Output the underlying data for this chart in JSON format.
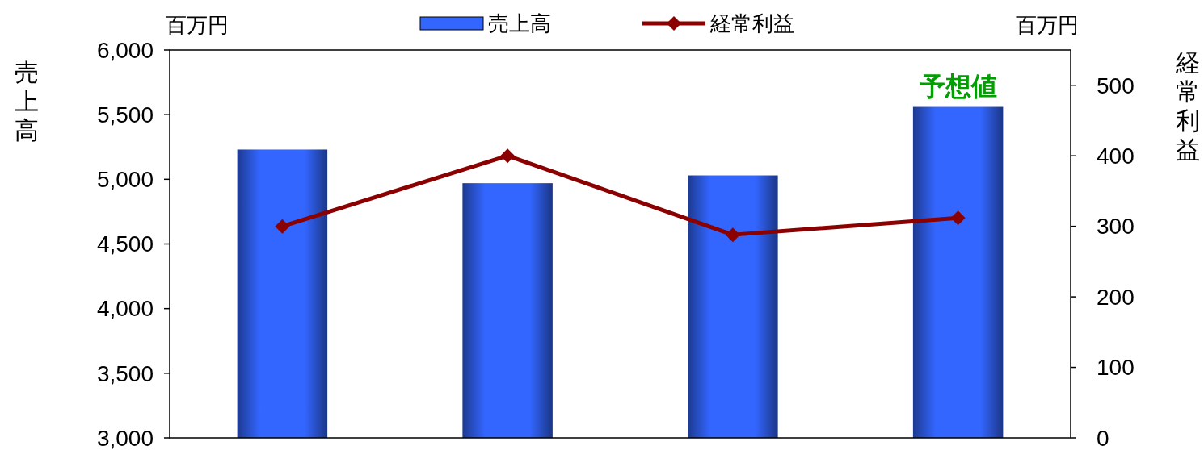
{
  "chart_data": {
    "type": "bar",
    "ylabel": "売上高",
    "y2label": "経常利益",
    "annotations": [
      "百万円",
      "百万円",
      "予想値"
    ],
    "categories": [
      null,
      null,
      null,
      null
    ],
    "series": [
      {
        "name": "売上高",
        "color": "#3366ff",
        "values": [
          5230,
          4970,
          5030,
          5560
        ]
      },
      {
        "name": "経常利益",
        "type": "line",
        "axis": "y2",
        "color": "#8b0000",
        "values": [
          300,
          400,
          288,
          312
        ]
      }
    ],
    "ylim": [
      3000,
      6000
    ],
    "yticks": [
      {
        "value": 3000,
        "label": "3,000"
      },
      {
        "value": 3500,
        "label": "3,500"
      },
      {
        "value": 4000,
        "label": "4,000"
      },
      {
        "value": 4500,
        "label": "4,500"
      },
      {
        "value": 5000,
        "label": "5,000"
      },
      {
        "value": 5500,
        "label": "5,500"
      },
      {
        "value": 6000,
        "label": "6,000"
      }
    ],
    "y2lim": [
      0,
      550
    ],
    "y2ticks": [
      0,
      100,
      200,
      300,
      400,
      500
    ],
    "legend": "top",
    "marker": "diamond",
    "grid": false
  }
}
